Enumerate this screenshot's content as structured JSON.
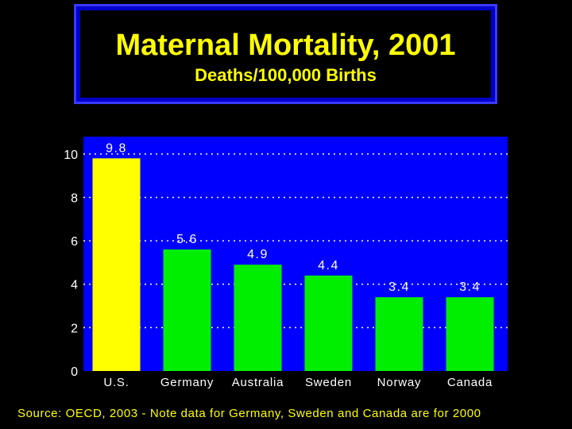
{
  "title_box": {
    "title": "Maternal Mortality, 2001",
    "subtitle": "Deaths/100,000 Births"
  },
  "source_note": "Source: OECD, 2003 - Note data for Germany, Sweden and Canada are for 2000",
  "colors": {
    "background": "#000000",
    "plot_background": "#0000ff",
    "title_border": "#0000cc",
    "highlight_bar": "#ffff00",
    "bar": "#00ee00",
    "text": "#ffffff",
    "title_text": "#ffff00"
  },
  "chart_data": {
    "type": "bar",
    "title": "Maternal Mortality, 2001",
    "subtitle": "Deaths/100,000 Births",
    "categories": [
      "U.S.",
      "Germany",
      "Australia",
      "Sweden",
      "Norway",
      "Canada"
    ],
    "values": [
      9.8,
      5.6,
      4.9,
      4.4,
      3.4,
      3.4
    ],
    "value_labels": [
      "9.8",
      "5.6",
      "4.9",
      "4.4",
      "3.4",
      "3.4"
    ],
    "highlight_category": "U.S.",
    "ylim": [
      0,
      10.8
    ],
    "yticks": [
      0,
      2,
      4,
      6,
      8,
      10
    ],
    "grid": true,
    "legend": "none"
  }
}
